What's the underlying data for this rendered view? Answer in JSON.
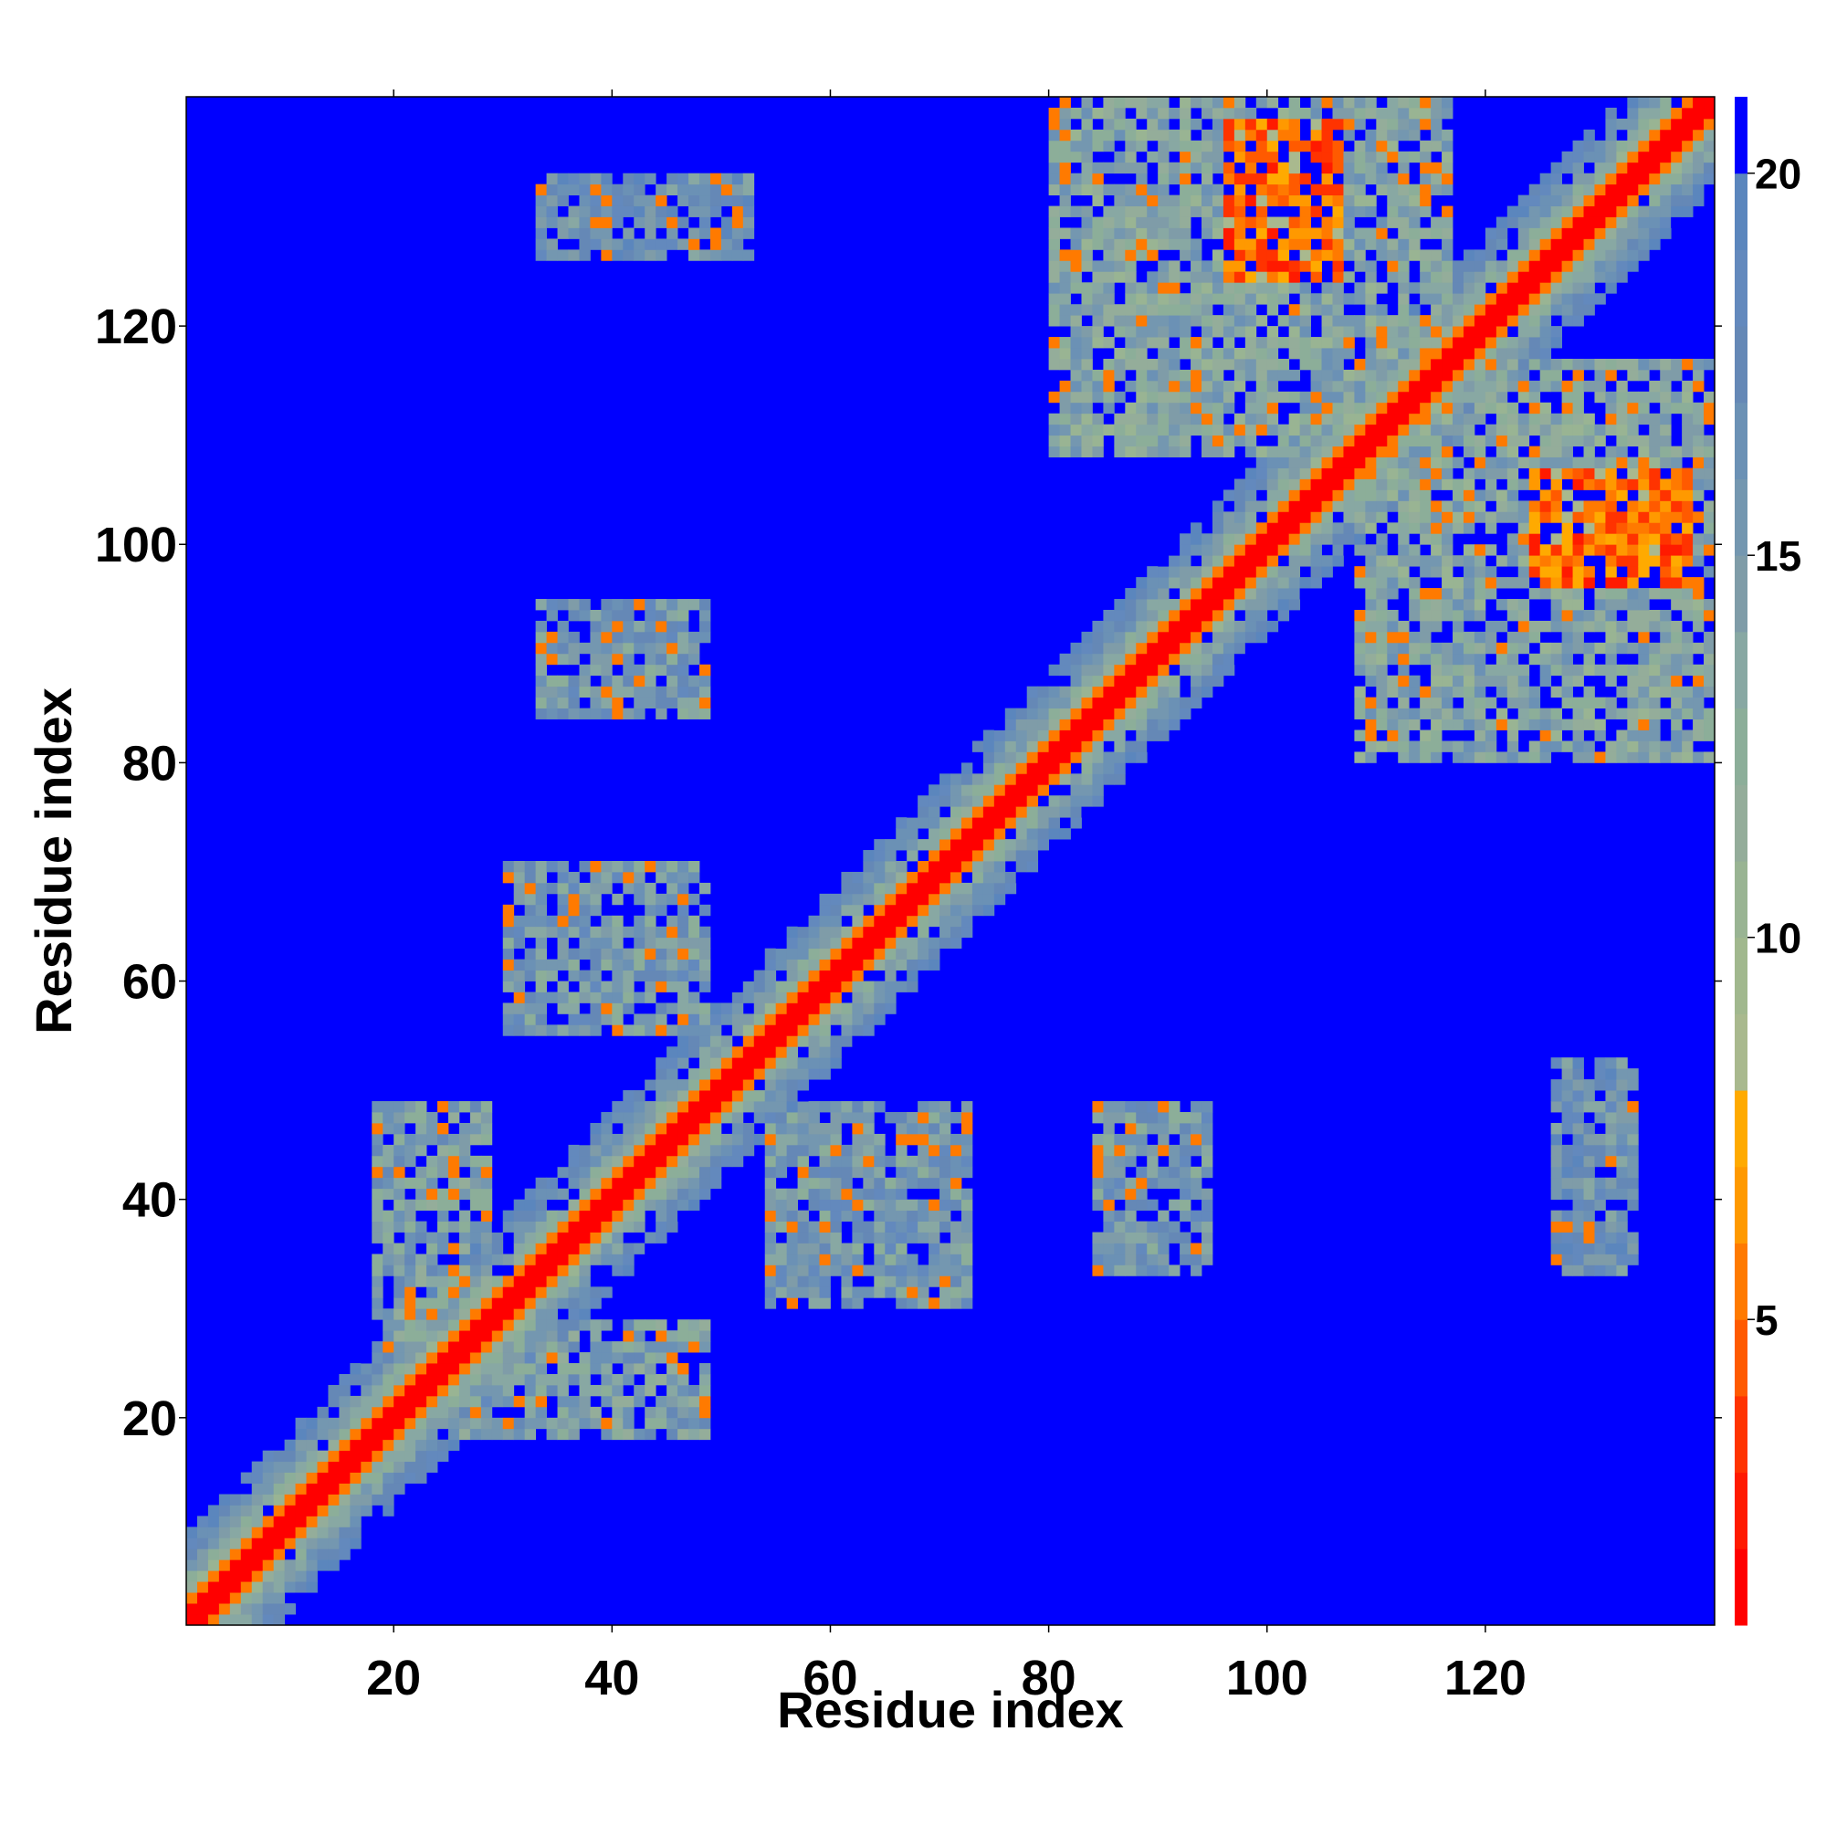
{
  "chart_data": {
    "type": "heatmap",
    "xlabel": "Residue index",
    "ylabel": "Residue index",
    "xlim": [
      1,
      140
    ],
    "ylim": [
      1,
      140
    ],
    "xticks": [
      20,
      40,
      60,
      80,
      100,
      120
    ],
    "yticks": [
      20,
      40,
      60,
      80,
      100,
      120
    ],
    "colorbar": {
      "range": [
        1,
        21
      ],
      "ticks": [
        5,
        10,
        15,
        20
      ],
      "bins": [
        {
          "max": 2,
          "color": "#ff0000"
        },
        {
          "max": 3,
          "color": "#ff1a00"
        },
        {
          "max": 4,
          "color": "#ff3300"
        },
        {
          "max": 5,
          "color": "#ff5a00"
        },
        {
          "max": 6,
          "color": "#ff7a00"
        },
        {
          "max": 7,
          "color": "#ff9900"
        },
        {
          "max": 8,
          "color": "#ffaa00"
        },
        {
          "max": 9,
          "color": "#a9b98e"
        },
        {
          "max": 10,
          "color": "#a1b88e"
        },
        {
          "max": 11,
          "color": "#99b493"
        },
        {
          "max": 12,
          "color": "#94ad9a"
        },
        {
          "max": 13,
          "color": "#8cae99"
        },
        {
          "max": 14,
          "color": "#88a8a3"
        },
        {
          "max": 15,
          "color": "#7f9ca8"
        },
        {
          "max": 16,
          "color": "#7497b0"
        },
        {
          "max": 17,
          "color": "#6b91b5"
        },
        {
          "max": 18,
          "color": "#6588b6"
        },
        {
          "max": 19,
          "color": "#6389bd"
        },
        {
          "max": 20,
          "color": "#5b86bd"
        },
        {
          "max": 21,
          "color": "#0000ff"
        }
      ]
    },
    "value_meaning": "Cell color encodes a pairwise value between residue i (x) and residue j (y); blue = beyond 20 (no contact)",
    "diagonal_band": {
      "core_value": 1,
      "near_value": 6,
      "shoulder_halfwidth": 8
    },
    "contact_regions": [
      {
        "x": [
          30,
          48
        ],
        "y": [
          55,
          70
        ],
        "value": 16
      },
      {
        "x": [
          54,
          72
        ],
        "y": [
          30,
          48
        ],
        "value": 16
      },
      {
        "x": [
          26,
          48
        ],
        "y": [
          18,
          28
        ],
        "value": 15
      },
      {
        "x": [
          18,
          28
        ],
        "y": [
          26,
          48
        ],
        "value": 15
      },
      {
        "x": [
          33,
          48
        ],
        "y": [
          84,
          94
        ],
        "value": 16
      },
      {
        "x": [
          84,
          94
        ],
        "y": [
          33,
          48
        ],
        "value": 16
      },
      {
        "x": [
          33,
          52
        ],
        "y": [
          126,
          133
        ],
        "value": 17
      },
      {
        "x": [
          126,
          133
        ],
        "y": [
          33,
          52
        ],
        "value": 17
      },
      {
        "x": [
          80,
          116
        ],
        "y": [
          108,
          140
        ],
        "value": 14
      },
      {
        "x": [
          108,
          140
        ],
        "y": [
          80,
          116
        ],
        "value": 14
      },
      {
        "x": [
          96,
          106
        ],
        "y": [
          124,
          138
        ],
        "value": 6
      },
      {
        "x": [
          124,
          138
        ],
        "y": [
          96,
          106
        ],
        "value": 6
      }
    ]
  }
}
